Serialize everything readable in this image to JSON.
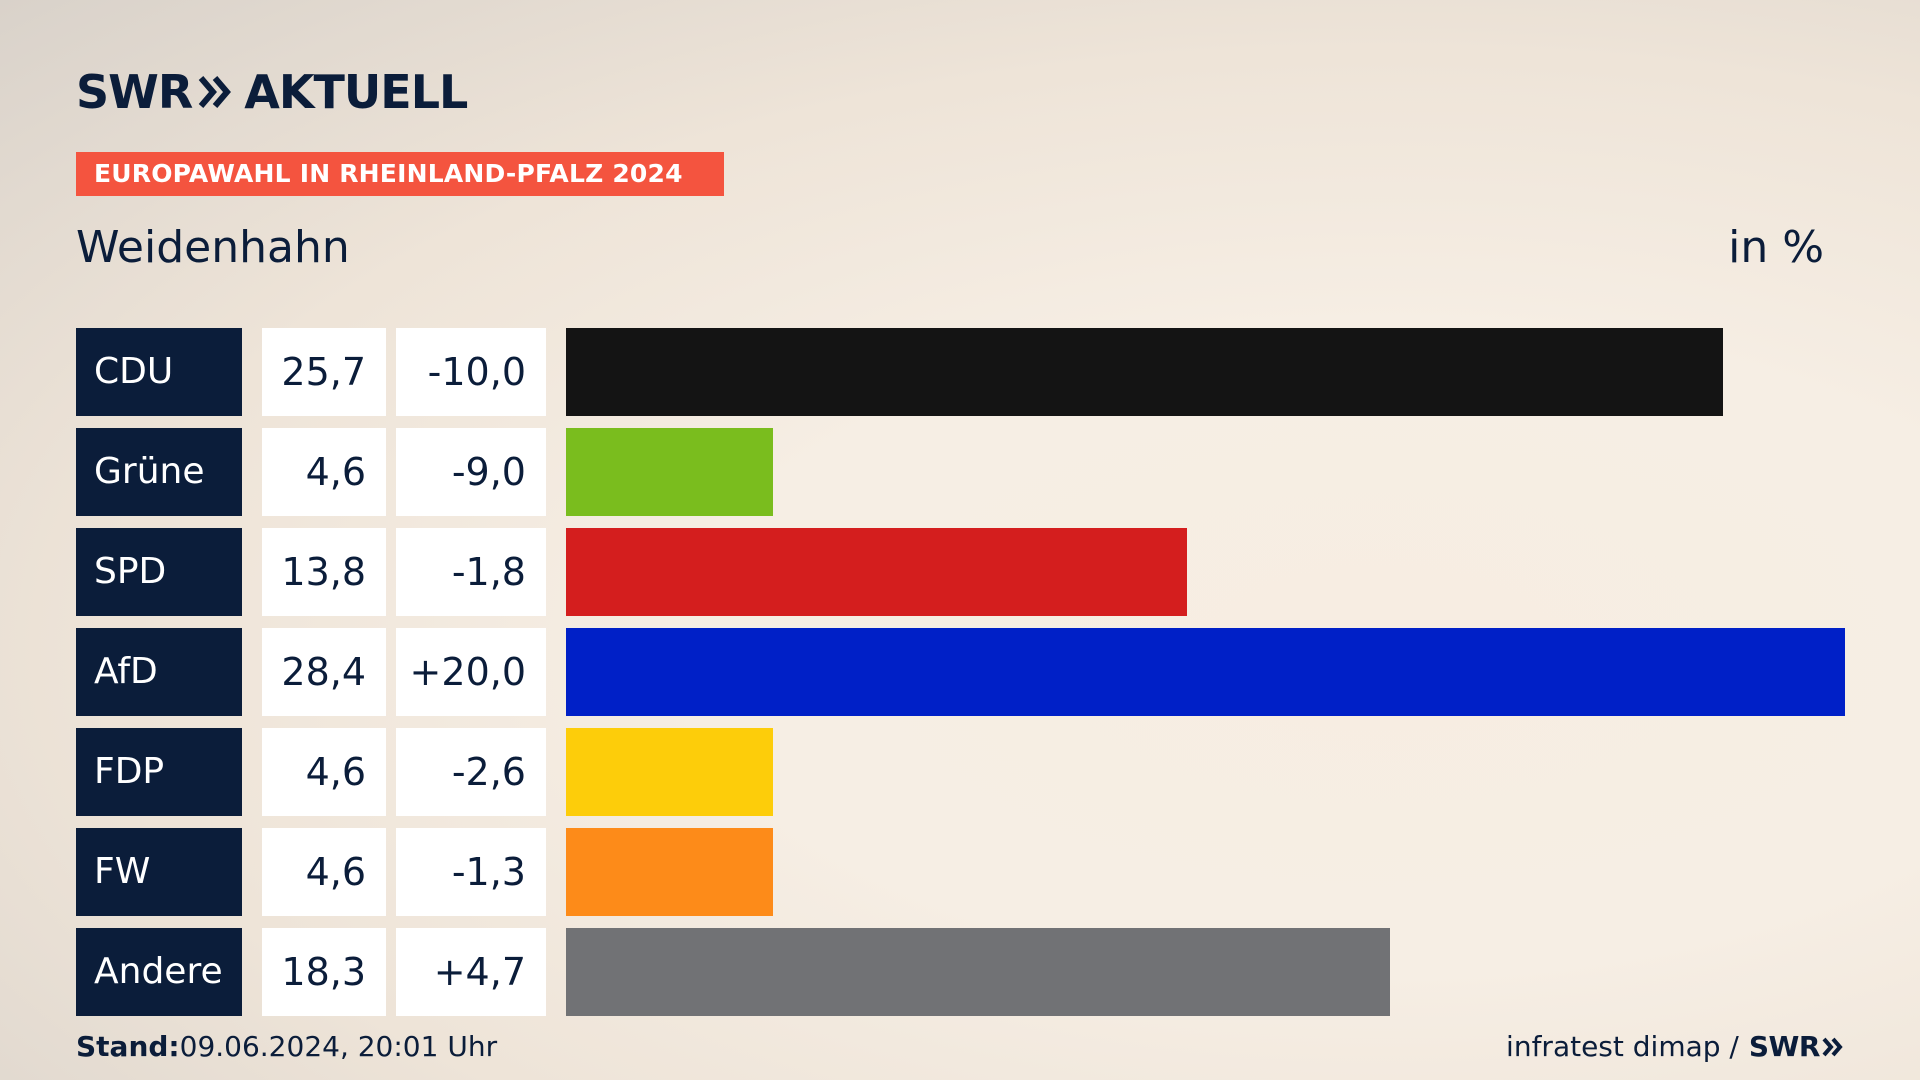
{
  "brand": {
    "name": "SWR",
    "product": "AKTUELL"
  },
  "banner": "EUROPAWAHL IN RHEINLAND-PFALZ 2024",
  "subtitle": "Weidenhahn",
  "unit": "in %",
  "footer": {
    "stand_label": "Stand:",
    "stand_value": "09.06.2024, 20:01 Uhr",
    "source": "infratest dimap /",
    "source_logo": "SWR"
  },
  "chart_data": {
    "type": "bar",
    "orientation": "horizontal",
    "categories": [
      "CDU",
      "Grüne",
      "SPD",
      "AfD",
      "FDP",
      "FW",
      "Andere"
    ],
    "values": [
      25.7,
      4.6,
      13.8,
      28.4,
      4.6,
      4.6,
      18.3
    ],
    "value_labels": [
      "25,7",
      "4,6",
      "13,8",
      "28,4",
      "4,6",
      "4,6",
      "18,3"
    ],
    "change_labels": [
      "-10,0",
      "-9,0",
      "-1,8",
      "+20,0",
      "-2,6",
      "-1,3",
      "+4,7"
    ],
    "changes": [
      -10.0,
      -9.0,
      -1.8,
      20.0,
      -2.6,
      -1.3,
      4.7
    ],
    "colors": [
      "#141414",
      "#7abd1e",
      "#d41e1e",
      "#0020c7",
      "#fdcd0a",
      "#fd8b19",
      "#717275"
    ],
    "xlim": [
      0,
      28.4
    ],
    "grid": false
  }
}
